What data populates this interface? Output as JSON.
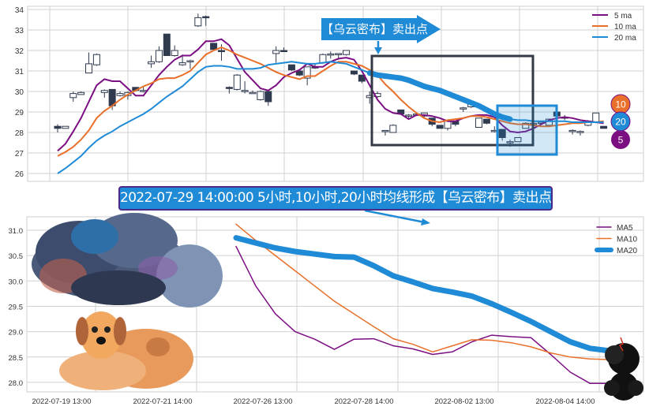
{
  "colors": {
    "ma5": "#7b0f82",
    "ma10": "#e8702a",
    "ma20": "#1f8ad6",
    "candle": "#2f3a4f",
    "grid": "#d0d0d0",
    "box": "#333a44"
  },
  "top_annotation": "【乌云密布】卖出点",
  "main_annotation": "2022-07-29 14:00:00 5小时,10小时,20小时均线形成【乌云密布】卖出点",
  "badges": [
    "10",
    "20",
    "5"
  ],
  "chart_data": [
    {
      "type": "candlestick",
      "title": "",
      "ylim": [
        25.8,
        34.3
      ],
      "yticks": [
        26,
        27,
        28,
        29,
        30,
        31,
        32,
        33,
        34
      ],
      "grid": true,
      "legend": {
        "placement": "top-right",
        "entries": [
          "5 ma",
          "10 ma",
          "20 ma"
        ]
      },
      "candles": [
        [
          28.3,
          28.4,
          28.0,
          28.2
        ],
        [
          28.2,
          28.3,
          28.2,
          28.3
        ],
        [
          29.7,
          30.0,
          29.5,
          29.9
        ],
        [
          29.85,
          30.0,
          29.85,
          29.95
        ],
        [
          30.9,
          31.9,
          30.9,
          31.35
        ],
        [
          31.3,
          31.85,
          31.25,
          31.8
        ],
        [
          29.95,
          30.1,
          29.7,
          30.05
        ],
        [
          30.1,
          30.1,
          29.1,
          29.3
        ],
        [
          29.8,
          30.0,
          29.75,
          29.9
        ],
        [
          29.8,
          30.0,
          29.6,
          29.95
        ],
        [
          30.2,
          30.2,
          30.0,
          30.05
        ],
        [
          30.05,
          30.25,
          29.95,
          30.05
        ],
        [
          31.35,
          31.75,
          31.15,
          31.45
        ],
        [
          31.45,
          32.2,
          31.4,
          32.0
        ],
        [
          32.8,
          32.8,
          31.75,
          31.75
        ],
        [
          31.75,
          32.25,
          31.7,
          32.0
        ],
        [
          31.3,
          31.8,
          31.25,
          31.4
        ],
        [
          31.45,
          31.55,
          31.1,
          31.5
        ],
        [
          33.2,
          33.8,
          33.15,
          33.6
        ],
        [
          33.65,
          33.7,
          33.2,
          33.6
        ],
        [
          32.35,
          32.35,
          32.05,
          32.05
        ],
        [
          32.0,
          32.3,
          31.5,
          31.95
        ],
        [
          30.2,
          30.25,
          29.9,
          30.15
        ],
        [
          30.1,
          30.85,
          30.05,
          30.8
        ],
        [
          30.05,
          30.5,
          29.9,
          30.05
        ],
        [
          29.95,
          30.05,
          29.9,
          29.95
        ],
        [
          29.6,
          30.05,
          29.55,
          30.0
        ],
        [
          30.0,
          30.0,
          29.3,
          29.5
        ],
        [
          31.85,
          32.2,
          31.4,
          32.0
        ],
        [
          32.0,
          32.15,
          31.95,
          31.98
        ],
        [
          31.3,
          31.3,
          31.0,
          31.05
        ],
        [
          31.0,
          31.0,
          30.75,
          30.8
        ],
        [
          30.65,
          31.2,
          30.3,
          31.2
        ],
        [
          31.2,
          31.35,
          31.1,
          31.15
        ],
        [
          31.4,
          31.85,
          31.35,
          31.8
        ],
        [
          31.82,
          31.95,
          31.6,
          31.83
        ],
        [
          31.85,
          31.85,
          31.55,
          31.85
        ],
        [
          31.8,
          32.0,
          31.75,
          32.0
        ],
        [
          31.0,
          31.0,
          30.8,
          30.85
        ],
        [
          30.8,
          30.8,
          30.4,
          30.5
        ],
        [
          29.7,
          30.0,
          29.4,
          29.8
        ],
        [
          29.75,
          30.0,
          29.7,
          29.9
        ],
        [
          28.1,
          28.1,
          27.85,
          28.1
        ],
        [
          28.0,
          28.4,
          28.0,
          28.35
        ],
        [
          29.1,
          29.1,
          28.85,
          28.9
        ],
        [
          28.85,
          28.9,
          28.7,
          28.85
        ],
        [
          28.85,
          28.95,
          28.8,
          28.9
        ],
        [
          28.8,
          28.95,
          28.75,
          28.95
        ],
        [
          28.7,
          28.7,
          28.3,
          28.4
        ],
        [
          28.35,
          28.35,
          28.2,
          28.2
        ],
        [
          28.2,
          28.55,
          28.1,
          28.55
        ],
        [
          28.55,
          28.55,
          28.3,
          28.4
        ],
        [
          29.2,
          29.25,
          29.0,
          29.2
        ],
        [
          29.25,
          29.45,
          29.2,
          29.45
        ],
        [
          28.25,
          28.7,
          28.25,
          28.7
        ],
        [
          28.65,
          28.65,
          28.4,
          28.45
        ],
        [
          28.1,
          28.3,
          28.0,
          28.1
        ],
        [
          28.15,
          28.15,
          27.6,
          27.75
        ],
        [
          27.55,
          27.65,
          27.3,
          27.55
        ],
        [
          27.55,
          27.75,
          27.55,
          27.75
        ],
        [
          28.2,
          28.5,
          28.2,
          28.45
        ],
        [
          28.45,
          28.5,
          28.3,
          28.45
        ],
        [
          28.5,
          28.55,
          28.4,
          28.5
        ],
        [
          28.35,
          28.65,
          28.3,
          28.65
        ],
        [
          29.0,
          29.0,
          28.8,
          28.8
        ],
        [
          28.75,
          28.85,
          28.6,
          28.75
        ],
        [
          28.1,
          28.15,
          27.9,
          28.1
        ],
        [
          28.05,
          28.1,
          27.85,
          28.05
        ],
        [
          28.35,
          28.6,
          28.3,
          28.55
        ],
        [
          28.5,
          28.95,
          28.45,
          28.95
        ],
        [
          28.3,
          28.3,
          28.2,
          28.2
        ]
      ],
      "series": [
        {
          "name": "5 ma",
          "values": [
            27.1,
            27.45,
            28.05,
            28.7,
            29.5,
            30.3,
            30.6,
            30.5,
            30.5,
            30.15,
            29.8,
            29.8,
            30.3,
            30.8,
            31.2,
            31.55,
            31.75,
            31.75,
            32.05,
            32.45,
            32.45,
            32.55,
            32.25,
            31.6,
            30.95,
            30.55,
            30.15,
            30.05,
            30.3,
            30.7,
            30.9,
            31.05,
            31.35,
            31.2,
            31.2,
            31.45,
            31.6,
            31.65,
            31.55,
            31.0,
            30.3,
            29.6,
            29.15,
            28.95,
            28.9,
            28.65,
            28.85,
            28.85,
            28.8,
            28.7,
            28.55,
            28.55,
            28.7,
            28.8,
            28.85,
            28.85,
            28.75,
            28.35,
            28.05,
            28.0,
            28.05,
            28.2,
            28.4,
            28.6,
            28.7,
            28.75,
            28.7,
            28.6,
            28.55,
            28.5,
            28.45
          ]
        },
        {
          "name": "10 ma",
          "values": [
            26.85,
            27.05,
            27.3,
            27.65,
            28.1,
            28.7,
            29.05,
            29.3,
            29.6,
            29.85,
            30.05,
            30.25,
            30.4,
            30.6,
            30.65,
            30.65,
            30.8,
            31.0,
            31.4,
            31.8,
            32.0,
            32.15,
            32.0,
            31.8,
            31.65,
            31.5,
            31.35,
            31.15,
            30.95,
            30.8,
            30.7,
            30.6,
            30.75,
            30.75,
            31.0,
            31.25,
            31.45,
            31.45,
            31.35,
            31.25,
            31.05,
            30.8,
            30.35,
            30.0,
            29.6,
            29.25,
            28.95,
            28.7,
            28.55,
            28.5,
            28.6,
            28.65,
            28.7,
            28.8,
            28.8,
            28.75,
            28.65,
            28.55,
            28.45,
            28.4,
            28.4,
            28.35,
            28.3,
            28.3,
            28.35,
            28.4,
            28.45,
            28.45,
            28.5,
            28.5,
            28.55
          ]
        },
        {
          "name": "20 ma",
          "values": [
            26.0,
            26.25,
            26.55,
            26.85,
            27.25,
            27.6,
            27.85,
            28.05,
            28.3,
            28.5,
            28.7,
            28.9,
            29.15,
            29.45,
            29.75,
            30.0,
            30.25,
            30.6,
            30.95,
            31.2,
            31.25,
            31.25,
            31.2,
            31.1,
            31.1,
            31.1,
            31.15,
            31.3,
            31.35,
            31.4,
            31.45,
            31.4,
            31.35,
            31.35,
            31.4,
            31.45,
            31.4,
            31.35,
            31.2,
            31.05,
            30.9,
            30.8,
            30.75,
            30.7,
            30.65,
            30.55,
            30.4,
            30.25,
            30.15,
            30.05,
            29.9,
            29.75,
            29.6,
            29.45,
            29.3,
            29.1,
            28.9,
            28.75,
            28.65,
            28.6,
            28.6,
            28.55,
            28.55,
            28.55,
            28.55,
            28.55,
            28.5,
            28.5,
            28.5,
            28.5,
            28.5
          ],
          "highlight_range": [
            40,
            58
          ]
        }
      ]
    },
    {
      "type": "line",
      "title": "",
      "ylim": [
        27.8,
        31.25
      ],
      "yticks": [
        "28.0",
        "28.5",
        "29.0",
        "29.5",
        "30.0",
        "30.5",
        "31.0"
      ],
      "xticks": [
        "2022-07-19 13:00",
        "2022-07-21 14:00",
        "2022-07-26 13:00",
        "2022-07-28 14:00",
        "2022-08-02 13:00",
        "2022-08-04 14:00"
      ],
      "grid": true,
      "legend": {
        "placement": "top-right",
        "entries": [
          "MA5",
          "MA10",
          "MA20"
        ]
      },
      "series": [
        {
          "name": "MA5",
          "values": [
            30.68,
            29.9,
            29.35,
            29.0,
            28.85,
            28.65,
            28.85,
            28.86,
            28.72,
            28.66,
            28.55,
            28.6,
            28.8,
            28.93,
            28.9,
            28.88,
            28.55,
            28.2,
            27.98,
            27.98
          ]
        },
        {
          "name": "MA10",
          "values": [
            31.12,
            30.8,
            30.5,
            30.2,
            29.9,
            29.6,
            29.35,
            29.1,
            28.86,
            28.75,
            28.6,
            28.72,
            28.84,
            28.83,
            28.78,
            28.7,
            28.58,
            28.5,
            28.46,
            28.45
          ]
        },
        {
          "name": "MA20",
          "values": [
            30.85,
            30.75,
            30.65,
            30.58,
            30.53,
            30.48,
            30.47,
            30.3,
            30.1,
            29.98,
            29.85,
            29.78,
            29.7,
            29.55,
            29.38,
            29.2,
            29.0,
            28.8,
            28.67,
            28.62
          ]
        }
      ]
    }
  ]
}
